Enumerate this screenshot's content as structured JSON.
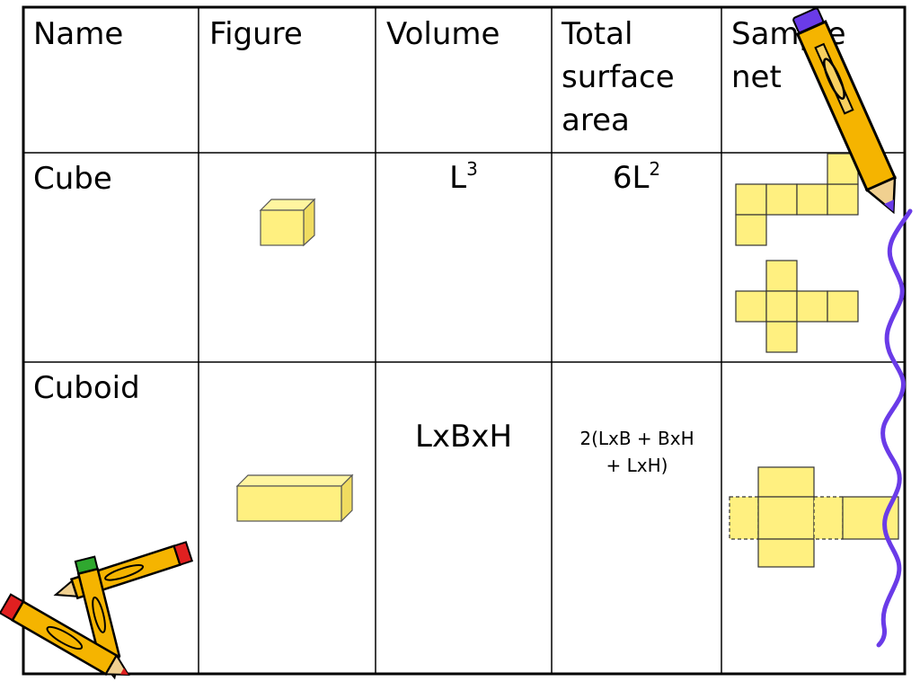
{
  "table": {
    "headers": [
      "Name",
      "Figure",
      "Volume",
      "Total surface area",
      "Sample net"
    ],
    "header_lines": {
      "total_surface_area": [
        "Total",
        "surface",
        "area"
      ],
      "sample_net": [
        "Sample",
        "net"
      ]
    },
    "rows": [
      {
        "name": "Cube",
        "volume": {
          "base": "L",
          "exponent": "3"
        },
        "surface_area": {
          "base": "6L",
          "exponent": "2"
        }
      },
      {
        "name": "Cuboid",
        "volume": {
          "text": "LxBxH"
        },
        "surface_area": {
          "lines": [
            "2(LxB + BxH",
            "+ LxH)"
          ]
        }
      }
    ]
  },
  "colors": {
    "shape_fill": "#FFF080",
    "shape_side": "#F0DC60",
    "grid_line": "#000000",
    "pencil_body": "#F5B400",
    "wavy_line": "#6A3BE8"
  },
  "decorations": [
    "pencil-icon-top-right",
    "pencils-icon-bottom-left",
    "wavy-line-right"
  ]
}
